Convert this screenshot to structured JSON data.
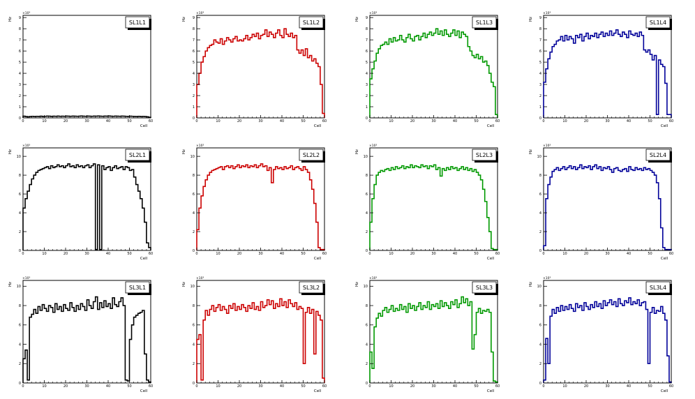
{
  "chart_data": [
    {
      "type": "histogram",
      "label": "SL1L1",
      "xlabel": "Cell",
      "ylabel": "Hz",
      "exponent": "×10³",
      "color": "#000000",
      "xlim": [
        0,
        60
      ],
      "ylim": [
        0,
        9.2
      ],
      "yticks": [
        0,
        1,
        2,
        3,
        4,
        5,
        6,
        7,
        8,
        9
      ],
      "xticks": [
        0,
        10,
        20,
        30,
        40,
        50,
        60
      ],
      "values": [
        0.15,
        0.12,
        0.1,
        0.12,
        0.14,
        0.12,
        0.14,
        0.13,
        0.15,
        0.12,
        0.14,
        0.16,
        0.15,
        0.13,
        0.15,
        0.14,
        0.16,
        0.14,
        0.15,
        0.14,
        0.16,
        0.15,
        0.14,
        0.16,
        0.15,
        0.14,
        0.15,
        0.17,
        0.15,
        0.14,
        0.16,
        0.15,
        0.14,
        0.16,
        0.15,
        0.17,
        0.15,
        0.14,
        0.16,
        0.15,
        0.17,
        0.15,
        0.14,
        0.16,
        0.15,
        0.14,
        0.16,
        0.15,
        0.14,
        0.13,
        0.15,
        0.14,
        0.13,
        0.12,
        0.14,
        0.12,
        0.13,
        0.12,
        0.1,
        0.05
      ]
    },
    {
      "type": "histogram",
      "label": "SL1L2",
      "xlabel": "Cell",
      "ylabel": "Hz",
      "exponent": "×10³",
      "color": "#cc0000",
      "xlim": [
        0,
        60
      ],
      "ylim": [
        0,
        9.2
      ],
      "yticks": [
        0,
        1,
        2,
        3,
        4,
        5,
        6,
        7,
        8,
        9
      ],
      "xticks": [
        0,
        10,
        20,
        30,
        40,
        50,
        60
      ],
      "values": [
        3.0,
        4.0,
        5.0,
        5.5,
        6.0,
        6.3,
        6.5,
        6.6,
        7.0,
        6.8,
        6.7,
        7.1,
        6.6,
        6.9,
        7.2,
        7.0,
        6.8,
        7.1,
        7.3,
        6.9,
        7.0,
        6.9,
        7.1,
        7.4,
        7.0,
        7.2,
        7.5,
        7.3,
        7.6,
        7.1,
        7.4,
        7.5,
        7.9,
        7.3,
        7.7,
        7.5,
        7.2,
        7.6,
        7.9,
        7.4,
        7.2,
        8.0,
        7.5,
        7.3,
        7.6,
        7.2,
        7.4,
        6.1,
        5.8,
        6.1,
        5.6,
        6.2,
        5.4,
        5.6,
        5.1,
        5.3,
        4.9,
        4.6,
        3.0,
        0.4
      ]
    },
    {
      "type": "histogram",
      "label": "SL1L3",
      "xlabel": "Cell",
      "ylabel": "Hz",
      "exponent": "×10³",
      "color": "#009900",
      "xlim": [
        0,
        60
      ],
      "ylim": [
        0,
        9.2
      ],
      "yticks": [
        0,
        1,
        2,
        3,
        4,
        5,
        6,
        7,
        8,
        9
      ],
      "xticks": [
        0,
        10,
        20,
        30,
        40,
        50,
        60
      ],
      "values": [
        3.5,
        4.4,
        5.1,
        5.8,
        6.2,
        6.5,
        6.6,
        6.8,
        6.6,
        7.1,
        6.8,
        7.2,
        6.9,
        7.0,
        7.4,
        7.0,
        6.8,
        7.2,
        7.5,
        7.1,
        6.9,
        7.3,
        7.4,
        7.0,
        7.3,
        7.6,
        7.2,
        7.5,
        7.7,
        7.4,
        7.6,
        8.0,
        7.5,
        7.8,
        7.4,
        7.9,
        7.5,
        7.3,
        7.6,
        7.9,
        7.4,
        7.8,
        7.2,
        7.7,
        7.5,
        7.3,
        6.4,
        6.0,
        5.6,
        5.4,
        5.7,
        5.3,
        5.5,
        5.0,
        5.1,
        4.7,
        4.0,
        3.2,
        2.8,
        0.3
      ]
    },
    {
      "type": "histogram",
      "label": "SL1L4",
      "xlabel": "Cell",
      "ylabel": "Hz",
      "exponent": "×10³",
      "color": "#000099",
      "xlim": [
        0,
        60
      ],
      "ylim": [
        0,
        9.2
      ],
      "yticks": [
        0,
        1,
        2,
        3,
        4,
        5,
        6,
        7,
        8,
        9
      ],
      "xticks": [
        0,
        10,
        20,
        30,
        40,
        50,
        60
      ],
      "values": [
        3.2,
        4.4,
        5.3,
        5.9,
        6.4,
        6.6,
        6.9,
        7.0,
        7.3,
        6.9,
        7.4,
        7.0,
        7.3,
        7.1,
        6.7,
        7.4,
        7.2,
        7.5,
        6.9,
        7.3,
        7.6,
        7.1,
        7.4,
        7.3,
        7.6,
        7.2,
        7.5,
        7.7,
        7.3,
        7.6,
        7.4,
        7.8,
        7.4,
        7.6,
        7.9,
        7.5,
        7.3,
        7.7,
        7.5,
        7.2,
        7.8,
        7.5,
        7.4,
        7.6,
        7.3,
        7.7,
        7.4,
        6.1,
        5.9,
        6.1,
        5.7,
        5.2,
        5.6,
        0.3,
        5.2,
        4.8,
        4.6,
        3.1,
        0.3,
        0.3
      ]
    },
    {
      "type": "histogram",
      "label": "SL2L1",
      "xlabel": "Cell",
      "ylabel": "Hz",
      "exponent": "×10³",
      "color": "#000000",
      "xlim": [
        0,
        60
      ],
      "ylim": [
        0,
        10.9
      ],
      "yticks": [
        0,
        2,
        4,
        6,
        8,
        10
      ],
      "xticks": [
        0,
        10,
        20,
        30,
        40,
        50,
        60
      ],
      "values": [
        4.5,
        5.5,
        6.3,
        7.0,
        7.6,
        8.0,
        8.3,
        8.5,
        8.6,
        8.7,
        8.8,
        8.9,
        8.7,
        9.0,
        8.8,
        8.9,
        9.1,
        8.9,
        9.0,
        8.8,
        9.0,
        9.2,
        8.9,
        9.0,
        8.8,
        9.1,
        8.9,
        9.0,
        8.8,
        9.0,
        9.1,
        8.8,
        9.0,
        9.2,
        0.1,
        9.1,
        0.1,
        9.0,
        8.6,
        8.8,
        8.9,
        8.5,
        8.8,
        9.0,
        8.7,
        8.8,
        8.9,
        8.6,
        8.9,
        8.8,
        8.5,
        8.6,
        7.8,
        7.0,
        6.3,
        5.5,
        4.5,
        3.0,
        0.8,
        0.3
      ]
    },
    {
      "type": "histogram",
      "label": "SL2L2",
      "xlabel": "Cell",
      "ylabel": "Hz",
      "exponent": "×10³",
      "color": "#cc0000",
      "xlim": [
        0,
        60
      ],
      "ylim": [
        0,
        10.9
      ],
      "yticks": [
        0,
        2,
        4,
        6,
        8,
        10
      ],
      "xticks": [
        0,
        10,
        20,
        30,
        40,
        50,
        60
      ],
      "values": [
        2.2,
        4.5,
        5.8,
        6.8,
        7.5,
        8.0,
        8.3,
        8.5,
        8.6,
        8.7,
        8.8,
        8.9,
        8.6,
        8.9,
        9.0,
        8.8,
        9.0,
        8.7,
        8.9,
        9.1,
        8.8,
        9.0,
        8.9,
        9.1,
        8.8,
        9.0,
        8.9,
        9.1,
        8.8,
        9.0,
        9.2,
        8.9,
        9.0,
        8.5,
        8.8,
        7.2,
        8.6,
        8.9,
        8.7,
        8.8,
        8.6,
        8.9,
        8.7,
        8.8,
        9.0,
        8.6,
        8.8,
        8.9,
        8.7,
        8.5,
        8.9,
        8.6,
        8.3,
        7.5,
        6.5,
        5.0,
        3.0,
        0.3,
        0.1,
        0.1
      ]
    },
    {
      "type": "histogram",
      "label": "SL2L3",
      "xlabel": "Cell",
      "ylabel": "Hz",
      "exponent": "×10³",
      "color": "#009900",
      "xlim": [
        0,
        60
      ],
      "ylim": [
        0,
        10.9
      ],
      "yticks": [
        0,
        2,
        4,
        6,
        8,
        10
      ],
      "xticks": [
        0,
        10,
        20,
        30,
        40,
        50,
        60
      ],
      "values": [
        3.0,
        5.5,
        7.0,
        8.0,
        8.3,
        8.5,
        8.4,
        8.6,
        8.7,
        8.5,
        8.8,
        8.6,
        8.9,
        8.7,
        8.8,
        9.0,
        8.7,
        8.9,
        8.8,
        9.1,
        8.8,
        9.0,
        8.9,
        8.8,
        9.1,
        8.9,
        9.0,
        8.7,
        9.0,
        8.9,
        9.1,
        8.6,
        8.8,
        7.9,
        8.7,
        8.5,
        8.8,
        8.6,
        8.9,
        8.7,
        8.8,
        8.5,
        8.7,
        8.9,
        8.6,
        8.8,
        8.5,
        8.7,
        8.4,
        8.6,
        8.3,
        8.0,
        7.5,
        6.5,
        5.2,
        3.5,
        2.0,
        0.2,
        0.1,
        0.1
      ]
    },
    {
      "type": "histogram",
      "label": "SL2L4",
      "xlabel": "Cell",
      "ylabel": "Hz",
      "exponent": "×10³",
      "color": "#000099",
      "xlim": [
        0,
        60
      ],
      "ylim": [
        0,
        10.9
      ],
      "yticks": [
        0,
        2,
        4,
        6,
        8,
        10
      ],
      "xticks": [
        0,
        10,
        20,
        30,
        40,
        50,
        60
      ],
      "values": [
        0.5,
        5.5,
        7.0,
        7.8,
        8.4,
        8.6,
        8.8,
        8.5,
        8.7,
        8.9,
        8.6,
        8.8,
        9.0,
        8.7,
        8.9,
        8.6,
        8.8,
        9.1,
        8.7,
        8.9,
        8.8,
        9.0,
        8.6,
        8.9,
        9.1,
        8.7,
        8.9,
        8.5,
        8.8,
        8.7,
        8.9,
        8.6,
        8.3,
        8.7,
        8.8,
        8.5,
        8.4,
        8.6,
        8.7,
        8.4,
        8.9,
        8.6,
        8.5,
        8.8,
        8.6,
        8.7,
        8.5,
        8.8,
        8.6,
        8.7,
        8.5,
        8.3,
        8.0,
        7.2,
        5.5,
        2.4,
        0.3,
        0.1,
        0.1,
        0.1
      ]
    },
    {
      "type": "histogram",
      "label": "SL3L1",
      "xlabel": "Cell",
      "ylabel": "Hz",
      "exponent": "×10³",
      "color": "#000000",
      "xlim": [
        0,
        60
      ],
      "ylim": [
        0,
        10.6
      ],
      "yticks": [
        0,
        2,
        4,
        6,
        8,
        10
      ],
      "xticks": [
        0,
        10,
        20,
        30,
        40,
        50,
        60
      ],
      "values": [
        2.5,
        3.4,
        0.3,
        6.8,
        7.1,
        7.6,
        7.2,
        7.9,
        7.5,
        8.1,
        7.7,
        7.4,
        8.0,
        7.8,
        7.3,
        8.2,
        7.6,
        7.9,
        7.4,
        8.1,
        7.7,
        7.5,
        8.3,
        7.8,
        7.4,
        8.0,
        7.6,
        8.2,
        7.9,
        7.5,
        8.6,
        8.0,
        7.7,
        8.4,
        8.9,
        7.6,
        8.3,
        7.8,
        8.5,
        7.9,
        8.2,
        7.7,
        8.8,
        8.1,
        7.9,
        8.4,
        8.8,
        8.0,
        0.3,
        0.2,
        4.5,
        6.0,
        6.8,
        7.0,
        7.2,
        7.3,
        7.5,
        3.0,
        0.3,
        0.1
      ]
    },
    {
      "type": "histogram",
      "label": "SL3L2",
      "xlabel": "Cell",
      "ylabel": "Hz",
      "exponent": "×10³",
      "color": "#cc0000",
      "xlim": [
        0,
        60
      ],
      "ylim": [
        0,
        10.6
      ],
      "yticks": [
        0,
        2,
        4,
        6,
        8,
        10
      ],
      "xticks": [
        0,
        10,
        20,
        30,
        40,
        50,
        60
      ],
      "values": [
        4.5,
        5.0,
        0.3,
        6.5,
        7.5,
        7.0,
        7.6,
        8.0,
        7.4,
        7.8,
        8.1,
        7.5,
        7.9,
        7.6,
        7.2,
        8.0,
        7.7,
        8.2,
        7.5,
        7.9,
        7.6,
        8.1,
        7.8,
        7.4,
        8.0,
        7.7,
        8.3,
        7.6,
        7.9,
        7.5,
        8.4,
        7.8,
        8.0,
        8.6,
        8.1,
        8.5,
        7.7,
        8.2,
        7.9,
        8.7,
        8.0,
        8.4,
        7.8,
        8.6,
        8.2,
        7.9,
        8.3,
        7.6,
        7.9,
        7.7,
        2.0,
        7.3,
        7.8,
        7.2,
        7.6,
        3.0,
        7.4,
        7.0,
        6.5,
        0.5
      ]
    },
    {
      "type": "histogram",
      "label": "SL3L3",
      "xlabel": "Cell",
      "ylabel": "Hz",
      "exponent": "×10³",
      "color": "#009900",
      "xlim": [
        0,
        60
      ],
      "ylim": [
        0,
        10.6
      ],
      "yticks": [
        0,
        2,
        4,
        6,
        8,
        10
      ],
      "xticks": [
        0,
        10,
        20,
        30,
        40,
        50,
        60
      ],
      "values": [
        3.2,
        1.5,
        5.8,
        6.7,
        7.2,
        6.9,
        7.5,
        7.8,
        7.3,
        7.6,
        8.0,
        7.4,
        7.7,
        7.5,
        8.1,
        7.6,
        7.9,
        7.3,
        8.2,
        7.7,
        8.0,
        7.5,
        7.9,
        8.3,
        7.6,
        8.0,
        7.8,
        8.4,
        7.6,
        8.1,
        7.9,
        8.2,
        7.7,
        8.5,
        7.9,
        8.3,
        8.0,
        7.7,
        8.4,
        8.1,
        8.6,
        7.8,
        8.2,
        8.9,
        8.3,
        8.7,
        8.0,
        8.4,
        3.5,
        5.0,
        7.3,
        7.7,
        7.2,
        7.5,
        7.4,
        7.6,
        7.3,
        3.2,
        0.2,
        0.1
      ]
    },
    {
      "type": "histogram",
      "label": "SL3L4",
      "xlabel": "Cell",
      "ylabel": "Hz",
      "exponent": "×10³",
      "color": "#000099",
      "xlim": [
        0,
        60
      ],
      "ylim": [
        0,
        10.6
      ],
      "yticks": [
        0,
        2,
        4,
        6,
        8,
        10
      ],
      "xticks": [
        0,
        10,
        20,
        30,
        40,
        50,
        60
      ],
      "values": [
        0.3,
        4.6,
        2.0,
        6.9,
        7.6,
        7.2,
        7.8,
        7.4,
        8.0,
        7.5,
        7.9,
        7.6,
        8.1,
        7.7,
        7.4,
        8.2,
        7.8,
        8.0,
        7.5,
        8.3,
        7.9,
        7.6,
        8.1,
        7.8,
        8.4,
        7.9,
        8.2,
        7.7,
        8.5,
        8.0,
        8.3,
        8.6,
        8.1,
        8.4,
        7.9,
        8.7,
        8.2,
        8.0,
        8.5,
        8.3,
        8.8,
        8.1,
        8.4,
        8.2,
        8.6,
        8.0,
        8.3,
        8.4,
        7.6,
        2.0,
        7.3,
        7.8,
        7.2,
        7.5,
        7.4,
        7.9,
        7.2,
        6.5,
        2.8,
        0.1
      ]
    }
  ]
}
